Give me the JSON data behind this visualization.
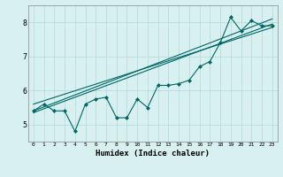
{
  "xlabel": "Humidex (Indice chaleur)",
  "bg_color": "#d8f0f0",
  "line_color": "#006666",
  "x_data": [
    0,
    1,
    2,
    3,
    4,
    5,
    6,
    7,
    8,
    9,
    10,
    11,
    12,
    13,
    14,
    15,
    16,
    17,
    18,
    19,
    20,
    21,
    22,
    23
  ],
  "y_data": [
    5.4,
    5.6,
    5.4,
    5.4,
    4.8,
    5.6,
    5.75,
    5.8,
    5.2,
    5.2,
    5.75,
    5.5,
    6.15,
    6.15,
    6.2,
    6.3,
    6.7,
    6.85,
    7.4,
    8.15,
    7.75,
    8.05,
    7.9,
    7.9
  ],
  "line1_x": [
    0,
    23
  ],
  "line1_y": [
    5.35,
    7.95
  ],
  "line2_x": [
    0,
    23
  ],
  "line2_y": [
    5.4,
    8.1
  ],
  "line3_x": [
    0,
    23
  ],
  "line3_y": [
    5.6,
    7.85
  ],
  "xlim": [
    -0.5,
    23.5
  ],
  "ylim": [
    4.5,
    8.5
  ],
  "yticks": [
    5,
    6,
    7,
    8
  ],
  "xticks": [
    0,
    1,
    2,
    3,
    4,
    5,
    6,
    7,
    8,
    9,
    10,
    11,
    12,
    13,
    14,
    15,
    16,
    17,
    18,
    19,
    20,
    21,
    22,
    23
  ]
}
